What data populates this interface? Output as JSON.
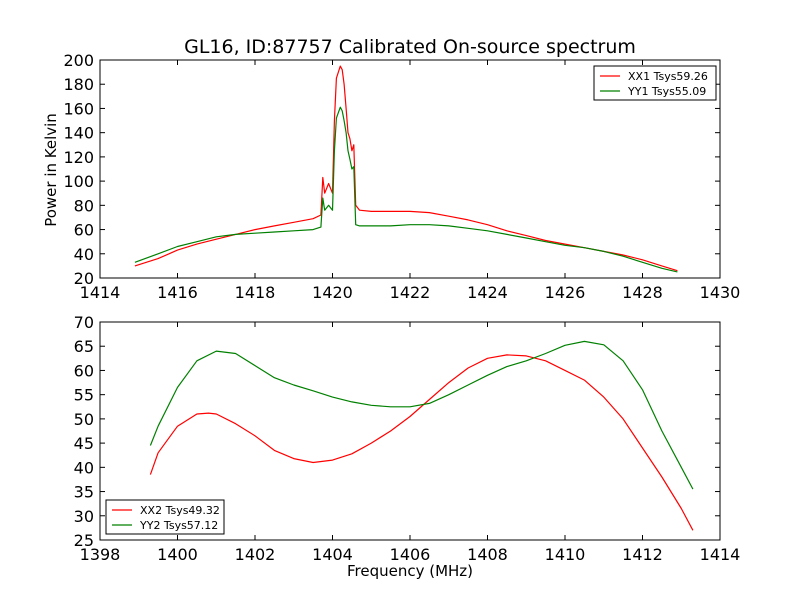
{
  "chart_data": [
    {
      "type": "line",
      "title": "GL16, ID:87757 Calibrated On-source spectrum",
      "xlabel": "",
      "ylabel": "Power in Kelvin",
      "xlim": [
        1414,
        1430
      ],
      "ylim": [
        20,
        200
      ],
      "xticks": [
        "1414",
        "1416",
        "1418",
        "1420",
        "1422",
        "1424",
        "1426",
        "1428",
        "1430"
      ],
      "yticks": [
        "20",
        "40",
        "60",
        "80",
        "100",
        "120",
        "140",
        "160",
        "180",
        "200"
      ],
      "legend_position": "top-right",
      "series": [
        {
          "name": "XX1 Tsys59.26",
          "color": "#ff0000",
          "x": [
            1414.9,
            1415.5,
            1416.0,
            1416.5,
            1417.0,
            1417.5,
            1418.0,
            1418.5,
            1419.0,
            1419.5,
            1419.7,
            1419.75,
            1419.8,
            1419.9,
            1420.0,
            1420.05,
            1420.1,
            1420.2,
            1420.25,
            1420.3,
            1420.35,
            1420.4,
            1420.45,
            1420.5,
            1420.55,
            1420.6,
            1420.7,
            1421.0,
            1421.5,
            1422.0,
            1422.5,
            1423.0,
            1423.5,
            1424.0,
            1424.5,
            1425.0,
            1425.5,
            1426.0,
            1426.5,
            1427.0,
            1427.5,
            1428.0,
            1428.5,
            1428.9
          ],
          "y": [
            30,
            36,
            43,
            48,
            52,
            56,
            60,
            63,
            66,
            69,
            72,
            103,
            90,
            98,
            90,
            150,
            185,
            195,
            192,
            180,
            160,
            140,
            135,
            125,
            130,
            80,
            76,
            75,
            75,
            75,
            74,
            71,
            68,
            64,
            59,
            55,
            51,
            48,
            45,
            42,
            39,
            35,
            30,
            26
          ]
        },
        {
          "name": "YY1 Tsys55.09",
          "color": "#008000",
          "x": [
            1414.9,
            1415.5,
            1416.0,
            1416.5,
            1417.0,
            1417.5,
            1418.0,
            1418.5,
            1419.0,
            1419.5,
            1419.7,
            1419.75,
            1419.8,
            1419.9,
            1420.0,
            1420.05,
            1420.1,
            1420.2,
            1420.25,
            1420.3,
            1420.35,
            1420.4,
            1420.45,
            1420.5,
            1420.55,
            1420.6,
            1420.7,
            1421.0,
            1421.5,
            1422.0,
            1422.5,
            1423.0,
            1423.5,
            1424.0,
            1424.5,
            1425.0,
            1425.5,
            1426.0,
            1426.5,
            1427.0,
            1427.5,
            1428.0,
            1428.5,
            1428.9
          ],
          "y": [
            33,
            40,
            46,
            50,
            54,
            56,
            57,
            58,
            59,
            60,
            62,
            86,
            76,
            80,
            76,
            125,
            152,
            161,
            158,
            150,
            140,
            125,
            118,
            110,
            112,
            64,
            63,
            63,
            63,
            64,
            64,
            63,
            61,
            59,
            56,
            53,
            50,
            47,
            45,
            42,
            38,
            33,
            28,
            25
          ]
        }
      ]
    },
    {
      "type": "line",
      "title": "",
      "xlabel": "Frequency (MHz)",
      "ylabel": "",
      "xlim": [
        1398,
        1414
      ],
      "ylim": [
        25,
        70
      ],
      "xticks": [
        "1398",
        "1400",
        "1402",
        "1404",
        "1406",
        "1408",
        "1410",
        "1412",
        "1414"
      ],
      "yticks": [
        "25",
        "30",
        "35",
        "40",
        "45",
        "50",
        "55",
        "60",
        "65",
        "70"
      ],
      "legend_position": "bottom-left",
      "series": [
        {
          "name": "XX2 Tsys49.32",
          "color": "#ff0000",
          "x": [
            1399.3,
            1399.5,
            1400.0,
            1400.5,
            1400.8,
            1401.0,
            1401.5,
            1402.0,
            1402.5,
            1403.0,
            1403.5,
            1404.0,
            1404.5,
            1405.0,
            1405.5,
            1406.0,
            1406.5,
            1407.0,
            1407.5,
            1408.0,
            1408.5,
            1409.0,
            1409.5,
            1410.0,
            1410.5,
            1411.0,
            1411.5,
            1412.0,
            1412.5,
            1413.0,
            1413.3
          ],
          "y": [
            38.5,
            43,
            48.5,
            51,
            51.2,
            51,
            49,
            46.5,
            43.5,
            41.8,
            41,
            41.5,
            42.8,
            45,
            47.5,
            50.5,
            54,
            57.5,
            60.5,
            62.5,
            63.2,
            63,
            62,
            60,
            58,
            54.5,
            50,
            44,
            38,
            31.5,
            27
          ]
        },
        {
          "name": "YY2 Tsys57.12",
          "color": "#008000",
          "x": [
            1399.3,
            1399.5,
            1400.0,
            1400.5,
            1401.0,
            1401.5,
            1402.0,
            1402.5,
            1403.0,
            1403.5,
            1404.0,
            1404.5,
            1405.0,
            1405.5,
            1406.0,
            1406.5,
            1407.0,
            1407.5,
            1408.0,
            1408.5,
            1409.0,
            1409.5,
            1410.0,
            1410.5,
            1411.0,
            1411.5,
            1412.0,
            1412.5,
            1413.0,
            1413.3
          ],
          "y": [
            44.5,
            48.5,
            56.5,
            62,
            64,
            63.5,
            61,
            58.5,
            57,
            55.8,
            54.5,
            53.5,
            52.8,
            52.5,
            52.5,
            53.2,
            55,
            57,
            59,
            60.8,
            62,
            63.5,
            65.2,
            66,
            65.3,
            62,
            56,
            47.5,
            40,
            35.5
          ]
        }
      ]
    }
  ]
}
